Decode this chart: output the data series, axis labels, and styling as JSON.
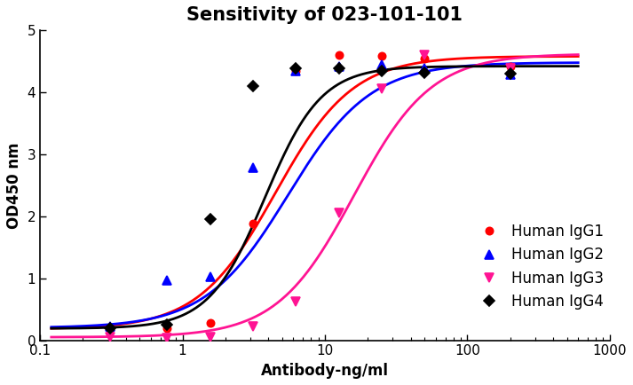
{
  "title": "Sensitivity of 023-101-101",
  "xlabel": "Antibody-ng/ml",
  "ylabel": "OD450 nm",
  "xlim_log": [
    0.1,
    1000
  ],
  "ylim": [
    0,
    5
  ],
  "yticks": [
    0,
    1,
    2,
    3,
    4,
    5
  ],
  "series": [
    {
      "label": "Human IgG1",
      "color": "#FF0000",
      "marker": "o",
      "markersize": 6,
      "ec50": 4.5,
      "top": 4.58,
      "bottom": 0.18,
      "hillslope": 1.6,
      "data_x": [
        0.31,
        0.78,
        1.56,
        3.13,
        6.25,
        12.5,
        25.0,
        50.0,
        200.0
      ],
      "data_y": [
        0.18,
        0.2,
        0.28,
        1.88,
        4.35,
        4.6,
        4.58,
        4.55,
        4.42
      ]
    },
    {
      "label": "Human IgG2",
      "color": "#0000FF",
      "marker": "^",
      "markersize": 7,
      "ec50": 5.5,
      "top": 4.48,
      "bottom": 0.2,
      "hillslope": 1.5,
      "data_x": [
        0.31,
        0.78,
        1.56,
        3.13,
        6.25,
        12.5,
        25.0,
        50.0,
        200.0
      ],
      "data_y": [
        0.22,
        0.97,
        1.02,
        2.78,
        4.35,
        4.42,
        4.45,
        4.38,
        4.28
      ]
    },
    {
      "label": "Human IgG3",
      "color": "#FF1493",
      "marker": "v",
      "markersize": 7,
      "ec50": 16.0,
      "top": 4.62,
      "bottom": 0.05,
      "hillslope": 1.6,
      "data_x": [
        0.31,
        0.78,
        1.56,
        3.13,
        6.25,
        12.5,
        25.0,
        50.0,
        200.0
      ],
      "data_y": [
        0.05,
        0.04,
        0.05,
        0.22,
        0.62,
        2.05,
        4.05,
        4.6,
        4.38
      ]
    },
    {
      "label": "Human IgG4",
      "color": "#000000",
      "marker": "D",
      "markersize": 6,
      "ec50": 3.8,
      "top": 4.42,
      "bottom": 0.19,
      "hillslope": 2.2,
      "data_x": [
        0.31,
        0.78,
        1.56,
        3.13,
        6.25,
        12.5,
        25.0,
        50.0,
        200.0
      ],
      "data_y": [
        0.2,
        0.25,
        1.95,
        4.1,
        4.38,
        4.38,
        4.35,
        4.32,
        4.3
      ]
    }
  ],
  "title_fontsize": 15,
  "label_fontsize": 12,
  "tick_fontsize": 11,
  "legend_fontsize": 12,
  "linewidth": 2.0,
  "background_color": "#FFFFFF"
}
